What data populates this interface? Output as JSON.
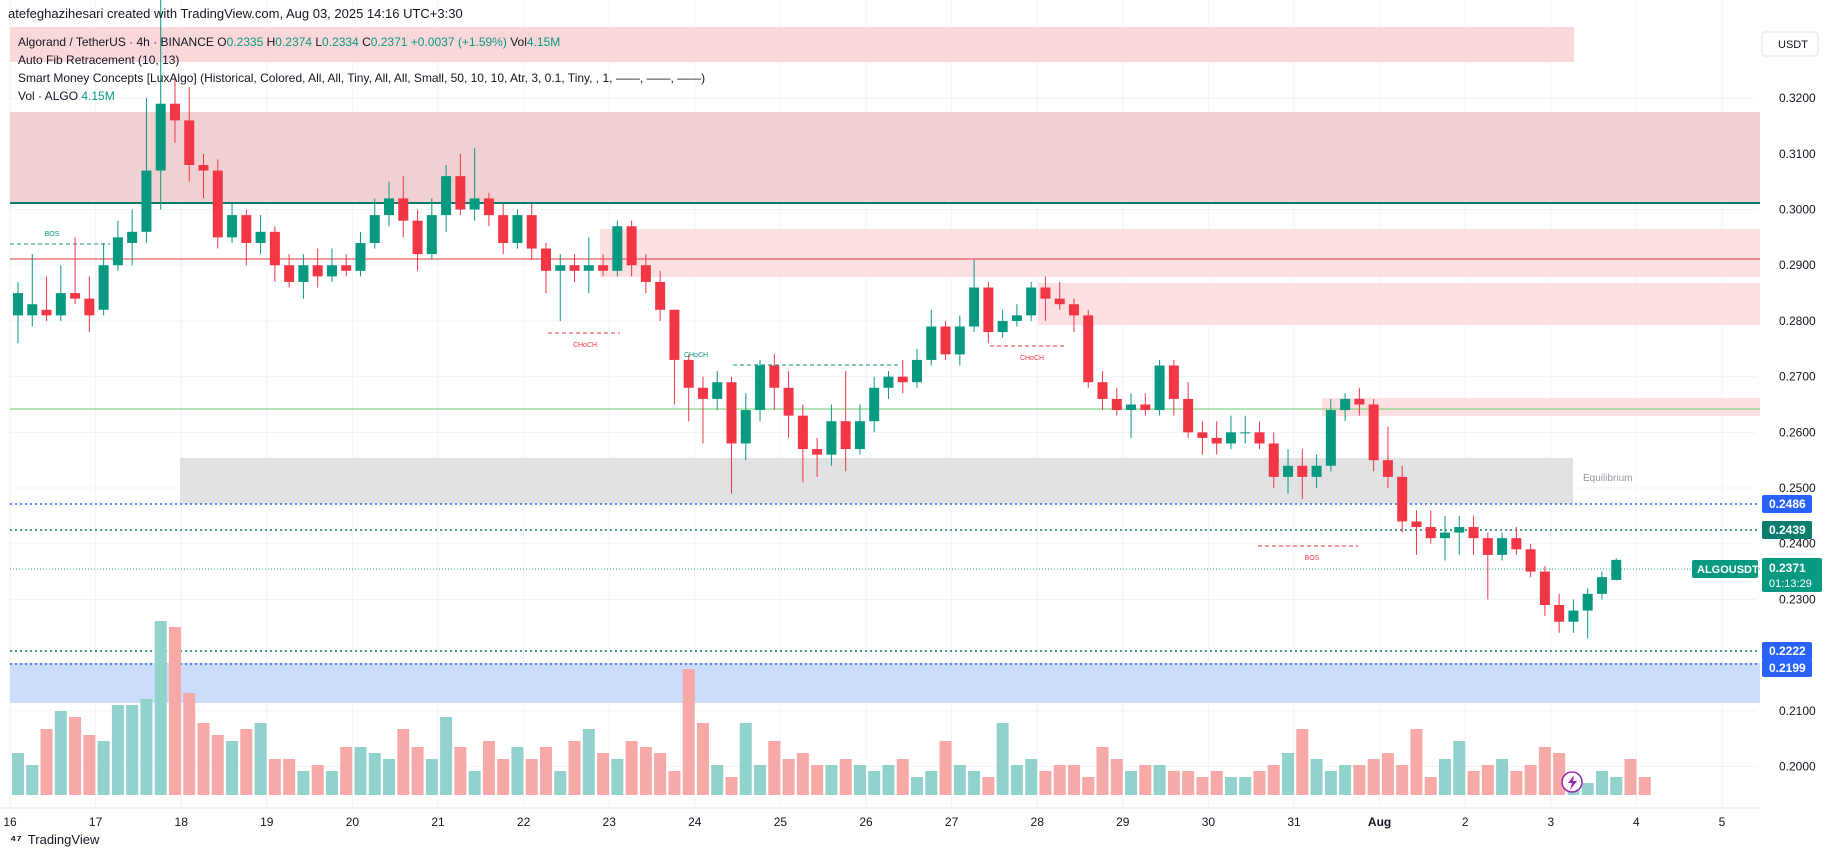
{
  "header": {
    "created_by": "atefeghazihesari created with TradingView.com, Aug 03, 2025 14:16 UTC+3:30"
  },
  "legend": {
    "symbol": "Algorand / TetherUS · 4h · BINANCE",
    "o_label": "O",
    "o_value": "0.2335",
    "h_label": "H",
    "h_value": "0.2374",
    "l_label": "L",
    "l_value": "0.2334",
    "c_label": "C",
    "c_value": "0.2371",
    "change": "+0.0037 (+1.59%)",
    "vol_label": "Vol",
    "vol_value": "4.15M",
    "indicator1": "Auto Fib Retracement (10, 13)",
    "indicator2": "Smart Money Concepts [LuxAlgo] (Historical, Colored, All, All, Tiny, All, All, Small, 50, 10, 10, Atr, 3, 0.1, Tiny, , 1, ——, ——, ——)",
    "vol_series_label": "Vol · ALGO",
    "vol_series_value": "4.15M"
  },
  "currency_button": "USDT",
  "footer": {
    "brand": "TradingView"
  },
  "colors": {
    "up": "#089981",
    "down": "#F23645",
    "up_vol": "#92D2CC",
    "down_vol": "#F7A9A7",
    "blue_dotted": "#2962FF",
    "teal_line": "#0B7D6C"
  },
  "chart_data": {
    "type": "candlestick",
    "ylim": [
      0.1975,
      0.3325
    ],
    "y_ticks": [
      "0.3200",
      "0.3100",
      "0.3000",
      "0.2900",
      "0.2800",
      "0.2700",
      "0.2600",
      "0.2500",
      "0.2400",
      "0.2300",
      "0.2100",
      "0.2000"
    ],
    "x_ticks": [
      "16",
      "17",
      "18",
      "19",
      "20",
      "21",
      "22",
      "23",
      "24",
      "25",
      "26",
      "27",
      "28",
      "29",
      "30",
      "31",
      "Aug",
      "2",
      "3",
      "4",
      "5"
    ],
    "candles": [
      [
        0.281,
        0.285,
        0.276,
        0.287
      ],
      [
        0.281,
        0.283,
        0.279,
        0.292
      ],
      [
        0.282,
        0.281,
        0.28,
        0.288
      ],
      [
        0.281,
        0.285,
        0.28,
        0.29
      ],
      [
        0.285,
        0.284,
        0.283,
        0.295
      ],
      [
        0.284,
        0.281,
        0.278,
        0.288
      ],
      [
        0.282,
        0.29,
        0.281,
        0.294
      ],
      [
        0.29,
        0.295,
        0.289,
        0.298
      ],
      [
        0.294,
        0.296,
        0.29,
        0.3
      ],
      [
        0.296,
        0.307,
        0.294,
        0.32
      ],
      [
        0.307,
        0.319,
        0.3,
        0.34
      ],
      [
        0.319,
        0.316,
        0.312,
        0.324
      ],
      [
        0.316,
        0.308,
        0.305,
        0.322
      ],
      [
        0.308,
        0.307,
        0.302,
        0.31
      ],
      [
        0.307,
        0.295,
        0.293,
        0.309
      ],
      [
        0.295,
        0.299,
        0.294,
        0.301
      ],
      [
        0.299,
        0.294,
        0.29,
        0.3
      ],
      [
        0.294,
        0.296,
        0.292,
        0.299
      ],
      [
        0.296,
        0.29,
        0.287,
        0.297
      ],
      [
        0.29,
        0.287,
        0.286,
        0.292
      ],
      [
        0.287,
        0.29,
        0.284,
        0.292
      ],
      [
        0.29,
        0.288,
        0.286,
        0.293
      ],
      [
        0.288,
        0.29,
        0.287,
        0.293
      ],
      [
        0.29,
        0.289,
        0.288,
        0.292
      ],
      [
        0.289,
        0.294,
        0.288,
        0.296
      ],
      [
        0.294,
        0.299,
        0.293,
        0.302
      ],
      [
        0.299,
        0.302,
        0.297,
        0.305
      ],
      [
        0.302,
        0.298,
        0.295,
        0.306
      ],
      [
        0.298,
        0.292,
        0.289,
        0.3
      ],
      [
        0.292,
        0.299,
        0.291,
        0.302
      ],
      [
        0.299,
        0.306,
        0.296,
        0.308
      ],
      [
        0.306,
        0.3,
        0.299,
        0.31
      ],
      [
        0.3,
        0.302,
        0.298,
        0.311
      ],
      [
        0.302,
        0.299,
        0.297,
        0.303
      ],
      [
        0.299,
        0.294,
        0.292,
        0.301
      ],
      [
        0.294,
        0.299,
        0.293,
        0.3
      ],
      [
        0.299,
        0.293,
        0.291,
        0.301
      ],
      [
        0.293,
        0.289,
        0.285,
        0.294
      ],
      [
        0.289,
        0.29,
        0.28,
        0.292
      ],
      [
        0.29,
        0.289,
        0.287,
        0.292
      ],
      [
        0.289,
        0.29,
        0.285,
        0.295
      ],
      [
        0.29,
        0.289,
        0.288,
        0.292
      ],
      [
        0.289,
        0.297,
        0.288,
        0.298
      ],
      [
        0.297,
        0.29,
        0.288,
        0.298
      ],
      [
        0.29,
        0.287,
        0.285,
        0.292
      ],
      [
        0.287,
        0.282,
        0.28,
        0.289
      ],
      [
        0.282,
        0.273,
        0.265,
        0.282
      ],
      [
        0.273,
        0.268,
        0.262,
        0.274
      ],
      [
        0.268,
        0.266,
        0.258,
        0.27
      ],
      [
        0.266,
        0.269,
        0.264,
        0.271
      ],
      [
        0.269,
        0.258,
        0.249,
        0.27
      ],
      [
        0.258,
        0.264,
        0.255,
        0.267
      ],
      [
        0.264,
        0.272,
        0.262,
        0.273
      ],
      [
        0.272,
        0.268,
        0.264,
        0.274
      ],
      [
        0.268,
        0.263,
        0.259,
        0.271
      ],
      [
        0.263,
        0.257,
        0.251,
        0.265
      ],
      [
        0.257,
        0.256,
        0.252,
        0.259
      ],
      [
        0.256,
        0.262,
        0.254,
        0.265
      ],
      [
        0.262,
        0.257,
        0.253,
        0.271
      ],
      [
        0.257,
        0.262,
        0.256,
        0.265
      ],
      [
        0.262,
        0.268,
        0.26,
        0.27
      ],
      [
        0.268,
        0.27,
        0.266,
        0.271
      ],
      [
        0.27,
        0.269,
        0.267,
        0.273
      ],
      [
        0.269,
        0.273,
        0.268,
        0.275
      ],
      [
        0.273,
        0.279,
        0.272,
        0.282
      ],
      [
        0.279,
        0.274,
        0.273,
        0.28
      ],
      [
        0.274,
        0.279,
        0.272,
        0.281
      ],
      [
        0.279,
        0.286,
        0.278,
        0.291
      ],
      [
        0.286,
        0.278,
        0.276,
        0.287
      ],
      [
        0.278,
        0.28,
        0.277,
        0.282
      ],
      [
        0.28,
        0.281,
        0.279,
        0.283
      ],
      [
        0.281,
        0.286,
        0.28,
        0.287
      ],
      [
        0.286,
        0.284,
        0.28,
        0.288
      ],
      [
        0.284,
        0.283,
        0.282,
        0.287
      ],
      [
        0.283,
        0.281,
        0.278,
        0.284
      ],
      [
        0.281,
        0.269,
        0.268,
        0.282
      ],
      [
        0.269,
        0.266,
        0.264,
        0.271
      ],
      [
        0.266,
        0.264,
        0.263,
        0.268
      ],
      [
        0.264,
        0.265,
        0.259,
        0.267
      ],
      [
        0.265,
        0.264,
        0.263,
        0.267
      ],
      [
        0.264,
        0.272,
        0.263,
        0.273
      ],
      [
        0.272,
        0.266,
        0.263,
        0.273
      ],
      [
        0.266,
        0.26,
        0.259,
        0.269
      ],
      [
        0.26,
        0.259,
        0.256,
        0.262
      ],
      [
        0.259,
        0.258,
        0.256,
        0.262
      ],
      [
        0.258,
        0.26,
        0.257,
        0.263
      ],
      [
        0.26,
        0.26,
        0.258,
        0.263
      ],
      [
        0.26,
        0.258,
        0.257,
        0.262
      ],
      [
        0.258,
        0.252,
        0.25,
        0.26
      ],
      [
        0.252,
        0.254,
        0.249,
        0.257
      ],
      [
        0.254,
        0.252,
        0.248,
        0.257
      ],
      [
        0.252,
        0.254,
        0.25,
        0.256
      ],
      [
        0.254,
        0.264,
        0.253,
        0.266
      ],
      [
        0.264,
        0.266,
        0.262,
        0.267
      ],
      [
        0.266,
        0.265,
        0.263,
        0.268
      ],
      [
        0.265,
        0.255,
        0.253,
        0.266
      ],
      [
        0.255,
        0.252,
        0.25,
        0.261
      ],
      [
        0.252,
        0.244,
        0.242,
        0.254
      ],
      [
        0.244,
        0.243,
        0.238,
        0.246
      ],
      [
        0.243,
        0.241,
        0.24,
        0.246
      ],
      [
        0.241,
        0.242,
        0.237,
        0.245
      ],
      [
        0.242,
        0.243,
        0.238,
        0.245
      ],
      [
        0.243,
        0.241,
        0.238,
        0.245
      ],
      [
        0.241,
        0.238,
        0.23,
        0.242
      ],
      [
        0.238,
        0.241,
        0.237,
        0.242
      ],
      [
        0.241,
        0.239,
        0.238,
        0.243
      ],
      [
        0.239,
        0.235,
        0.234,
        0.24
      ],
      [
        0.235,
        0.229,
        0.227,
        0.236
      ],
      [
        0.229,
        0.226,
        0.224,
        0.231
      ],
      [
        0.226,
        0.228,
        0.224,
        0.23
      ],
      [
        0.228,
        0.231,
        0.223,
        0.232
      ],
      [
        0.231,
        0.234,
        0.23,
        0.235
      ],
      [
        0.2335,
        0.2371,
        0.2334,
        0.2374
      ]
    ],
    "volumes": [
      0.35,
      0.25,
      0.55,
      0.7,
      0.65,
      0.5,
      0.45,
      0.75,
      0.75,
      0.8,
      1.45,
      1.4,
      0.85,
      0.6,
      0.5,
      0.45,
      0.55,
      0.6,
      0.3,
      0.3,
      0.2,
      0.25,
      0.2,
      0.4,
      0.4,
      0.35,
      0.3,
      0.55,
      0.4,
      0.3,
      0.65,
      0.4,
      0.2,
      0.45,
      0.3,
      0.4,
      0.3,
      0.4,
      0.2,
      0.45,
      0.55,
      0.35,
      0.3,
      0.45,
      0.4,
      0.35,
      0.2,
      1.05,
      0.6,
      0.25,
      0.15,
      0.6,
      0.25,
      0.45,
      0.3,
      0.35,
      0.25,
      0.25,
      0.3,
      0.25,
      0.2,
      0.25,
      0.3,
      0.15,
      0.2,
      0.45,
      0.25,
      0.2,
      0.15,
      0.6,
      0.25,
      0.3,
      0.2,
      0.25,
      0.25,
      0.15,
      0.4,
      0.3,
      0.2,
      0.25,
      0.25,
      0.2,
      0.2,
      0.15,
      0.2,
      0.15,
      0.15,
      0.2,
      0.25,
      0.35,
      0.55,
      0.3,
      0.2,
      0.25,
      0.25,
      0.3,
      0.35,
      0.25,
      0.55,
      0.15,
      0.3,
      0.45,
      0.2,
      0.25,
      0.3,
      0.2,
      0.25,
      0.4,
      0.35,
      0.15,
      0.1,
      0.2,
      0.15,
      0.3,
      0.15
    ],
    "annotations": [
      {
        "label": "BOS",
        "color": "#089981",
        "price": 0.295
      },
      {
        "label": "CHoCH",
        "color": "#F23645",
        "price": 0.279
      },
      {
        "label": "CHoCH",
        "color": "#089981",
        "price": 0.2735
      },
      {
        "label": "CHoCH",
        "color": "#F23645",
        "price": 0.277
      },
      {
        "label": "BOS",
        "color": "#F23645",
        "price": 0.241
      },
      {
        "label": "Equilibrium",
        "color": "#9598A1",
        "price": 0.253
      }
    ],
    "price_badges": [
      {
        "label": "0.2486",
        "price": 0.2486,
        "color": "#2962FF"
      },
      {
        "label": "0.2439",
        "price": 0.2439,
        "color": "#0B7D6C"
      },
      {
        "label": "0.2222",
        "price": 0.2222,
        "color": "#2962FF"
      },
      {
        "label": "0.2199",
        "price": 0.2199,
        "color": "#2962FF"
      }
    ],
    "current_price": {
      "symbol": "ALGOUSDT",
      "price": "0.2371",
      "countdown": "01:13:29",
      "value": 0.2371
    }
  }
}
